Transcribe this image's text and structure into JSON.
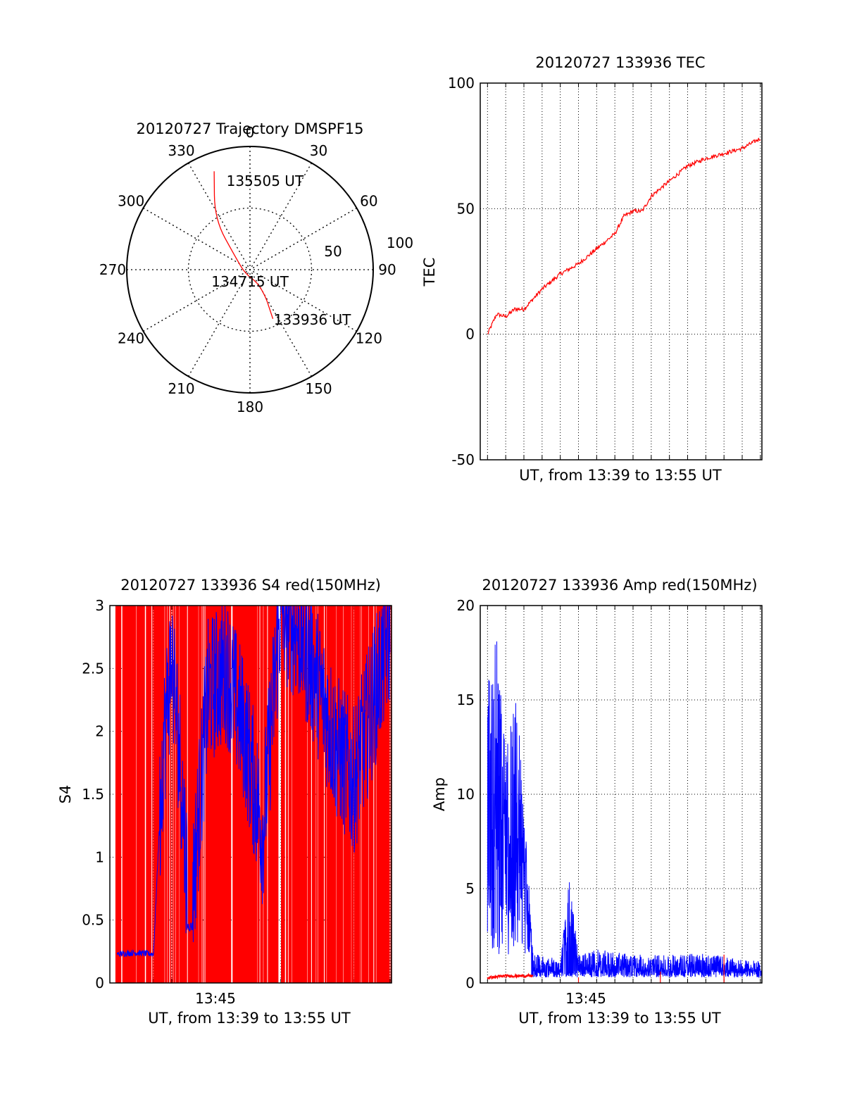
{
  "colors": {
    "red_series": "#ff0000",
    "blue_series": "#0000ff",
    "axes": "#000000",
    "grid": "#000000"
  },
  "chart_data": [
    {
      "type": "polar",
      "title": "20120727 Trajectory DMSPF15",
      "angle_ticks": [
        "0",
        "30",
        "60",
        "90",
        "120",
        "150",
        "180",
        "210",
        "240",
        "270",
        "300",
        "330"
      ],
      "radius_ticks": [
        "50",
        "100"
      ],
      "rlim": [
        0,
        100
      ],
      "grid": true,
      "series": [
        {
          "color": "#ff0000",
          "points": [
            {
              "angle": 155,
              "r": 44
            },
            {
              "angle": 153,
              "r": 34
            },
            {
              "angle": 150,
              "r": 25
            },
            {
              "angle": 150,
              "r": 12
            },
            {
              "angle": 230,
              "r": 5
            },
            {
              "angle": 310,
              "r": 15
            },
            {
              "angle": 325,
              "r": 50
            },
            {
              "angle": 340,
              "r": 85
            }
          ]
        }
      ],
      "annotations": [
        {
          "text": "135505 UT",
          "angle": 345,
          "r": 87
        },
        {
          "text": "134715 UT",
          "angle": 0,
          "r": 0
        },
        {
          "text": "133936 UT",
          "angle": 153,
          "r": 45
        }
      ]
    },
    {
      "type": "line",
      "title": "20120727 133936 TEC",
      "xlabel": "UT, from 13:39 to 13:55 UT",
      "ylabel": "TEC",
      "xlim": [
        "13:39:36",
        "13:55:05"
      ],
      "ylim": [
        -50,
        100
      ],
      "yticks": [
        "-50",
        "0",
        "50",
        "100"
      ],
      "grid": true,
      "series": [
        {
          "color": "#ff0000",
          "x": [
            "13:40:00",
            "13:40:30",
            "13:41:00",
            "13:41:30",
            "13:42:00",
            "13:43:00",
            "13:44:00",
            "13:45:00",
            "13:46:00",
            "13:47:00",
            "13:47:30",
            "13:48:00",
            "13:48:30",
            "13:49:00",
            "13:50:00",
            "13:51:00",
            "13:52:00",
            "13:53:00",
            "13:54:00",
            "13:55:00"
          ],
          "values": [
            0,
            8,
            7,
            10,
            10,
            18,
            24,
            28,
            34,
            40,
            47,
            49,
            49,
            55,
            61,
            67,
            70,
            72,
            74,
            78
          ]
        }
      ]
    },
    {
      "type": "line",
      "title": "20120727 133936 S4 red(150MHz)",
      "xlabel": "UT, from 13:39 to 13:55 UT",
      "ylabel": "S4",
      "xlim": [
        "13:39:36",
        "13:55:05"
      ],
      "ylim": [
        0,
        3
      ],
      "yticks": [
        "0",
        "0.5",
        "1",
        "1.5",
        "2",
        "2.5",
        "3"
      ],
      "xticks": [
        "13:45"
      ],
      "grid": true,
      "series": [
        {
          "color": "#ff0000",
          "x": [
            "13:40:00",
            "13:41:00",
            "13:42:00",
            "13:43:00",
            "13:44:00",
            "13:45:00",
            "13:46:00",
            "13:47:00",
            "13:48:00",
            "13:49:00",
            "13:50:00",
            "13:51:00",
            "13:52:00",
            "13:53:00",
            "13:54:00",
            "13:55:00"
          ],
          "values": [
            3,
            3,
            3,
            3,
            3,
            3,
            3,
            3,
            3,
            3,
            3,
            3,
            3,
            3,
            3,
            3
          ]
        },
        {
          "color": "#0000ff",
          "x": [
            "13:40:00",
            "13:41:00",
            "13:42:00",
            "13:42:30",
            "13:43:00",
            "13:43:30",
            "13:44:00",
            "13:45:00",
            "13:46:00",
            "13:47:00",
            "13:48:00",
            "13:49:00",
            "13:50:00",
            "13:51:00",
            "13:52:00",
            "13:53:00",
            "13:54:00",
            "13:55:00"
          ],
          "values": [
            0.23,
            0.24,
            0.23,
            1.8,
            2.6,
            1.7,
            0.45,
            2.3,
            2.5,
            2.0,
            1.2,
            3.0,
            2.8,
            2.4,
            1.9,
            1.6,
            2.2,
            2.8
          ]
        }
      ]
    },
    {
      "type": "line",
      "title": "20120727 133936 Amp red(150MHz)",
      "xlabel": "UT, from 13:39 to 13:55 UT",
      "ylabel": "Amp",
      "xlim": [
        "13:39:36",
        "13:55:05"
      ],
      "ylim": [
        0,
        20
      ],
      "yticks": [
        "0",
        "5",
        "10",
        "15",
        "20"
      ],
      "xticks": [
        "13:45"
      ],
      "grid": true,
      "series": [
        {
          "color": "#ff0000",
          "x": [
            "13:40:00",
            "13:41:00",
            "13:42:00",
            "13:42:30",
            "13:45:00",
            "13:50:00",
            "13:53:00",
            "13:55:00"
          ],
          "values": [
            0.2,
            0.3,
            0.3,
            0.3,
            0.1,
            0.5,
            1.5,
            0.5
          ]
        },
        {
          "color": "#0000ff",
          "x": [
            "13:40:00",
            "13:40:30",
            "13:41:00",
            "13:41:30",
            "13:42:00",
            "13:42:30",
            "13:43:00",
            "13:44:00",
            "13:44:30",
            "13:45:00",
            "13:46:00",
            "13:48:00",
            "13:50:00",
            "13:52:00",
            "13:54:00",
            "13:55:00"
          ],
          "values": [
            16,
            18.5,
            12,
            16.5,
            10,
            1.5,
            1.5,
            1.2,
            5.5,
            1.5,
            1.8,
            1.5,
            1.5,
            1.6,
            1.2,
            1.2
          ]
        }
      ]
    }
  ]
}
